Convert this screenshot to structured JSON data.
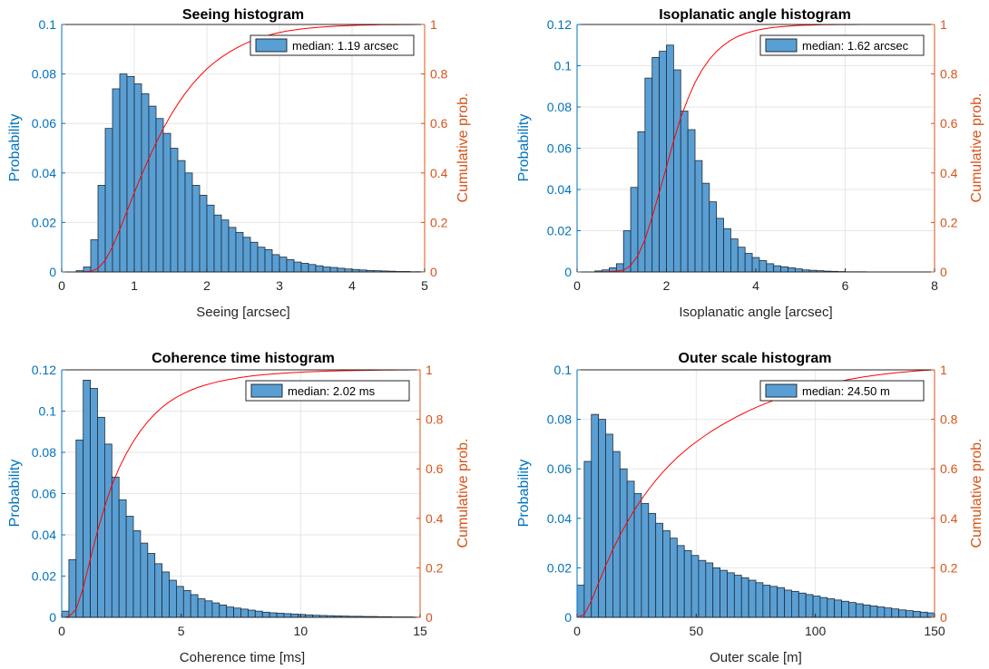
{
  "colors": {
    "bar": "#5a9fd4",
    "bar_edge": "#1f2c3a",
    "left_axis": "#0072bd",
    "right_axis": "#d95319",
    "cdf": "#ff0000",
    "grid": "#e6e6e6"
  },
  "chart_data": [
    {
      "type": "bar",
      "title": "Seeing histogram",
      "xlabel": "Seeing [arcsec]",
      "ylabel": "Probability",
      "y2label": "Cumulative prob.",
      "legend": "median: 1.19 arcsec",
      "legend_position": "top-right",
      "grid": true,
      "xlim": [
        0,
        5
      ],
      "ylim": [
        0,
        0.1
      ],
      "y2lim": [
        0,
        1
      ],
      "xticks": [
        0,
        1,
        2,
        3,
        4,
        5
      ],
      "xtick_labels": [
        "0",
        "1",
        "2",
        "3",
        "4",
        "5"
      ],
      "yticks": [
        0,
        0.02,
        0.04,
        0.06,
        0.08,
        0.1
      ],
      "ytick_labels": [
        "0",
        "0.02",
        "0.04",
        "0.06",
        "0.08",
        "0.1"
      ],
      "y2ticks": [
        0,
        0.2,
        0.4,
        0.6,
        0.8,
        1
      ],
      "y2tick_labels": [
        "0",
        "0.2",
        "0.4",
        "0.6",
        "0.8",
        "1"
      ],
      "bin_start": 0.2,
      "bin_width": 0.1,
      "values": [
        0.0005,
        0.002,
        0.013,
        0.035,
        0.058,
        0.074,
        0.08,
        0.079,
        0.076,
        0.072,
        0.067,
        0.062,
        0.056,
        0.05,
        0.045,
        0.04,
        0.035,
        0.031,
        0.027,
        0.023,
        0.021,
        0.018,
        0.016,
        0.014,
        0.012,
        0.01,
        0.009,
        0.007,
        0.006,
        0.005,
        0.004,
        0.0035,
        0.003,
        0.0025,
        0.002,
        0.0018,
        0.0015,
        0.0012,
        0.001,
        0.0008,
        0.0006,
        0.0005,
        0.0004,
        0.0003,
        0.0002,
        0.0002,
        0.0001,
        0.0001
      ]
    },
    {
      "type": "bar",
      "title": "Isoplanatic angle histogram",
      "xlabel": "Isoplanatic angle [arcsec]",
      "ylabel": "Probability",
      "y2label": "Cumulative prob.",
      "legend": "median: 1.62 arcsec",
      "legend_position": "top-right",
      "grid": true,
      "xlim": [
        0,
        8
      ],
      "ylim": [
        0,
        0.12
      ],
      "y2lim": [
        0,
        1
      ],
      "xticks": [
        0,
        2,
        4,
        6,
        8
      ],
      "xtick_labels": [
        "0",
        "2",
        "4",
        "6",
        "8"
      ],
      "yticks": [
        0,
        0.02,
        0.04,
        0.06,
        0.08,
        0.1,
        0.12
      ],
      "ytick_labels": [
        "0",
        "0.02",
        "0.04",
        "0.06",
        "0.08",
        "0.1",
        "0.12"
      ],
      "y2ticks": [
        0,
        0.2,
        0.4,
        0.6,
        0.8,
        1
      ],
      "y2tick_labels": [
        "0",
        "0.2",
        "0.4",
        "0.6",
        "0.8",
        "1"
      ],
      "bin_start": 0.4,
      "bin_width": 0.16,
      "values": [
        0.0005,
        0.001,
        0.002,
        0.004,
        0.02,
        0.041,
        0.068,
        0.094,
        0.104,
        0.107,
        0.11,
        0.098,
        0.078,
        0.069,
        0.054,
        0.043,
        0.034,
        0.026,
        0.021,
        0.016,
        0.012,
        0.009,
        0.007,
        0.0055,
        0.004,
        0.003,
        0.0025,
        0.002,
        0.0015,
        0.001,
        0.0008,
        0.0006,
        0.0004,
        0.0003,
        0.0002,
        0.0001,
        0.0001,
        0.0001
      ]
    },
    {
      "type": "bar",
      "title": "Coherence time histogram",
      "xlabel": "Coherence time [ms]",
      "ylabel": "Probability",
      "y2label": "Cumulative prob.",
      "legend": "median: 2.02 ms",
      "legend_position": "top-right",
      "grid": true,
      "xlim": [
        0,
        15
      ],
      "ylim": [
        0,
        0.12
      ],
      "y2lim": [
        0,
        1
      ],
      "xticks": [
        0,
        5,
        10,
        15
      ],
      "xtick_labels": [
        "0",
        "5",
        "10",
        "15"
      ],
      "yticks": [
        0,
        0.02,
        0.04,
        0.06,
        0.08,
        0.1,
        0.12
      ],
      "ytick_labels": [
        "0",
        "0.02",
        "0.04",
        "0.06",
        "0.08",
        "0.1",
        "0.12"
      ],
      "y2ticks": [
        0,
        0.2,
        0.4,
        0.6,
        0.8,
        1
      ],
      "y2tick_labels": [
        "0",
        "0.2",
        "0.4",
        "0.6",
        "0.8",
        "1"
      ],
      "bin_start": 0.0,
      "bin_width": 0.3,
      "values": [
        0.003,
        0.028,
        0.086,
        0.115,
        0.111,
        0.097,
        0.084,
        0.068,
        0.057,
        0.049,
        0.042,
        0.036,
        0.031,
        0.026,
        0.022,
        0.018,
        0.015,
        0.013,
        0.011,
        0.009,
        0.008,
        0.007,
        0.006,
        0.005,
        0.0045,
        0.004,
        0.0035,
        0.003,
        0.0025,
        0.0022,
        0.002,
        0.0018,
        0.0016,
        0.0014,
        0.0012,
        0.001,
        0.0009,
        0.0008,
        0.0007,
        0.0006,
        0.0005,
        0.0005,
        0.0004,
        0.0004,
        0.0003,
        0.0003,
        0.0002,
        0.0002,
        0.0002,
        0.0001
      ]
    },
    {
      "type": "bar",
      "title": "Outer scale histogram",
      "xlabel": "Outer scale [m]",
      "ylabel": "Probability",
      "y2label": "Cumulative prob.",
      "legend": "median: 24.50 m",
      "legend_position": "top-right",
      "grid": true,
      "xlim": [
        0,
        150
      ],
      "ylim": [
        0,
        0.1
      ],
      "y2lim": [
        0,
        1
      ],
      "xticks": [
        0,
        50,
        100,
        150
      ],
      "xtick_labels": [
        "0",
        "50",
        "100",
        "150"
      ],
      "yticks": [
        0,
        0.02,
        0.04,
        0.06,
        0.08,
        0.1
      ],
      "ytick_labels": [
        "0",
        "0.02",
        "0.04",
        "0.06",
        "0.08",
        "0.1"
      ],
      "y2ticks": [
        0,
        0.2,
        0.4,
        0.6,
        0.8,
        1
      ],
      "y2tick_labels": [
        "0",
        "0.2",
        "0.4",
        "0.6",
        "0.8",
        "1"
      ],
      "bin_start": 0,
      "bin_width": 3,
      "values": [
        0.013,
        0.063,
        0.082,
        0.08,
        0.074,
        0.067,
        0.06,
        0.055,
        0.05,
        0.046,
        0.042,
        0.038,
        0.035,
        0.032,
        0.029,
        0.027,
        0.025,
        0.023,
        0.022,
        0.02,
        0.019,
        0.018,
        0.017,
        0.016,
        0.015,
        0.014,
        0.013,
        0.0125,
        0.012,
        0.011,
        0.0105,
        0.0098,
        0.0092,
        0.0086,
        0.008,
        0.0075,
        0.007,
        0.0065,
        0.006,
        0.0055,
        0.005,
        0.0046,
        0.0042,
        0.0038,
        0.0034,
        0.003,
        0.0027,
        0.0024,
        0.0021,
        0.0018
      ]
    }
  ]
}
